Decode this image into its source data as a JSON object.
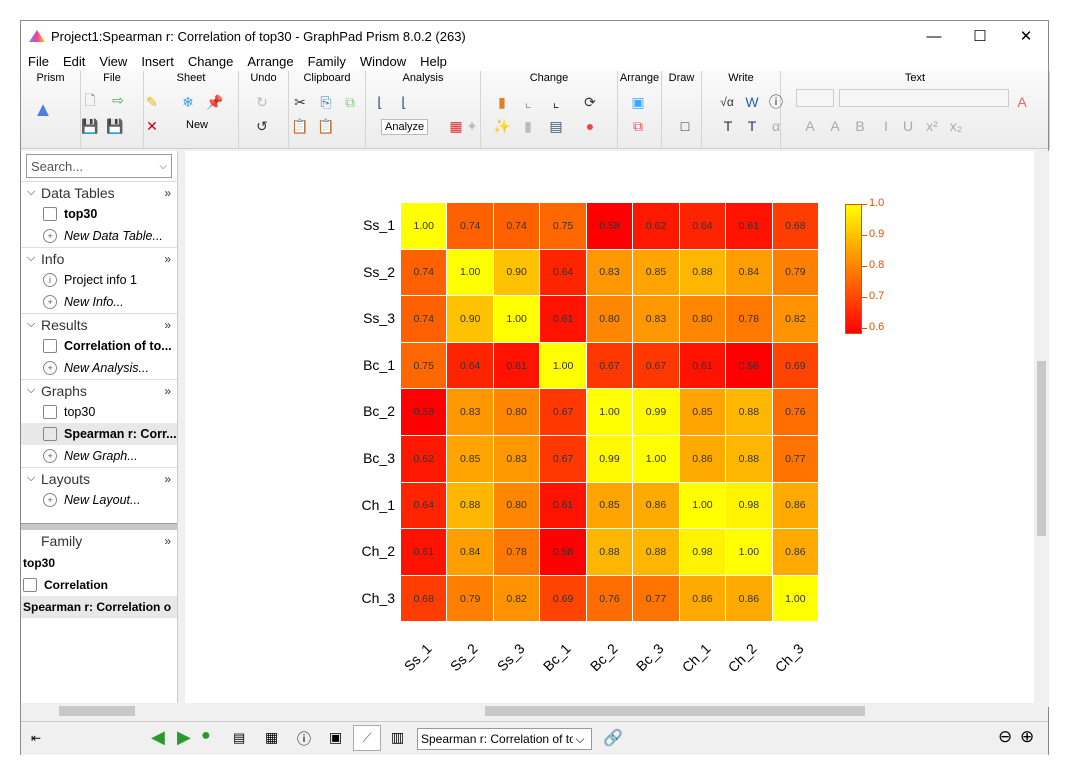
{
  "window": {
    "title": "Project1:Spearman r: Correlation of top30 - GraphPad Prism 8.0.2 (263)",
    "minimize": "—",
    "maximize": "☐",
    "close": "✕"
  },
  "menu": [
    "File",
    "Edit",
    "View",
    "Insert",
    "Change",
    "Arrange",
    "Family",
    "Window",
    "Help"
  ],
  "ribbon": {
    "groups": [
      "Prism",
      "File",
      "Sheet",
      "Undo",
      "Clipboard",
      "Analysis",
      "Change",
      "Arrange",
      "Draw",
      "Write",
      "Text"
    ],
    "new_label": "New",
    "analyze_label": "Analyze"
  },
  "sidebar": {
    "search_placeholder": "Search...",
    "sections": [
      {
        "title": "Data Tables",
        "items": [
          {
            "label": "top30",
            "bold": true
          },
          {
            "label": "New Data Table...",
            "new": true
          }
        ]
      },
      {
        "title": "Info",
        "items": [
          {
            "label": "Project info 1"
          },
          {
            "label": "New Info...",
            "new": true
          }
        ]
      },
      {
        "title": "Results",
        "items": [
          {
            "label": "Correlation of to...",
            "bold": true
          },
          {
            "label": "New Analysis...",
            "new": true
          }
        ]
      },
      {
        "title": "Graphs",
        "items": [
          {
            "label": "top30"
          },
          {
            "label": "Spearman r: Corr...",
            "bold": true,
            "selected": true
          },
          {
            "label": "New Graph...",
            "new": true
          }
        ]
      },
      {
        "title": "Layouts",
        "items": [
          {
            "label": "New Layout...",
            "new": true
          }
        ]
      }
    ],
    "family": {
      "title": "Family",
      "items": [
        "top30",
        "Correlation",
        "Spearman r: Correlation o"
      ]
    }
  },
  "status": {
    "sheet_select": "Spearman r: Correlation of top3"
  },
  "chart_data": {
    "type": "heatmap",
    "rows": [
      "Ss_1",
      "Ss_2",
      "Ss_3",
      "Bc_1",
      "Bc_2",
      "Bc_3",
      "Ch_1",
      "Ch_2",
      "Ch_3"
    ],
    "columns": [
      "Ss_1",
      "Ss_2",
      "Ss_3",
      "Bc_1",
      "Bc_2",
      "Bc_3",
      "Ch_1",
      "Ch_2",
      "Ch_3"
    ],
    "values": [
      [
        1.0,
        0.74,
        0.74,
        0.75,
        0.58,
        0.62,
        0.64,
        0.61,
        0.68
      ],
      [
        0.74,
        1.0,
        0.9,
        0.64,
        0.83,
        0.85,
        0.88,
        0.84,
        0.79
      ],
      [
        0.74,
        0.9,
        1.0,
        0.61,
        0.8,
        0.83,
        0.8,
        0.78,
        0.82
      ],
      [
        0.75,
        0.64,
        0.61,
        1.0,
        0.67,
        0.67,
        0.61,
        0.58,
        0.69
      ],
      [
        0.58,
        0.83,
        0.8,
        0.67,
        1.0,
        0.99,
        0.85,
        0.88,
        0.76
      ],
      [
        0.62,
        0.85,
        0.83,
        0.67,
        0.99,
        1.0,
        0.86,
        0.88,
        0.77
      ],
      [
        0.64,
        0.88,
        0.8,
        0.61,
        0.85,
        0.86,
        1.0,
        0.98,
        0.86
      ],
      [
        0.61,
        0.84,
        0.78,
        0.58,
        0.88,
        0.88,
        0.98,
        1.0,
        0.86
      ],
      [
        0.68,
        0.79,
        0.82,
        0.69,
        0.76,
        0.77,
        0.86,
        0.86,
        1.0
      ]
    ],
    "legend": {
      "ticks": [
        "1.0",
        "0.9",
        "0.8",
        "0.7",
        "0.6"
      ],
      "range": [
        0.58,
        1.0
      ],
      "colors": [
        "#ff0000",
        "#ffff00"
      ],
      "placement": "right"
    }
  }
}
